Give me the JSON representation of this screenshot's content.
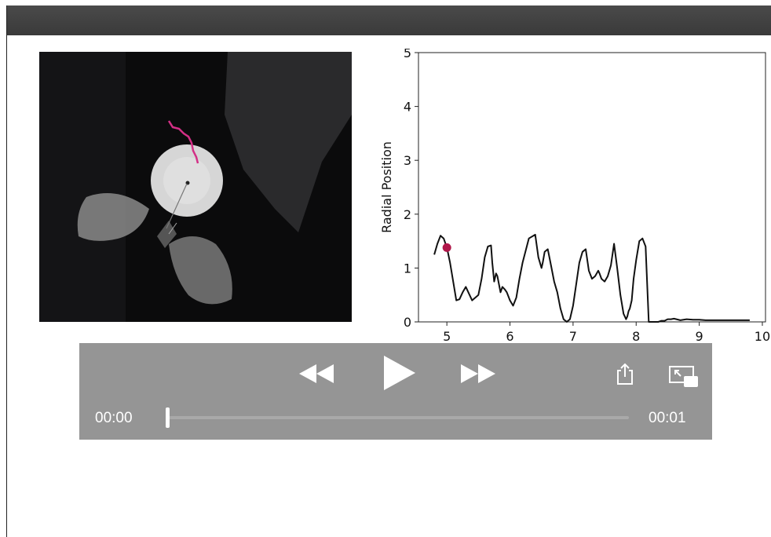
{
  "window": {
    "colors": {
      "close": "#f25f57",
      "minimize": "#e8b42a",
      "zoom": "#3cc23b"
    }
  },
  "video": {
    "description_icon": "video-frame",
    "trail_color": "#d32f86"
  },
  "chart_data": {
    "type": "line",
    "title": "",
    "xlabel": "",
    "ylabel": "Radial Position",
    "xlim": [
      4.55,
      10.05
    ],
    "ylim": [
      0,
      5
    ],
    "xticks": [
      "5",
      "6",
      "7",
      "8",
      "9",
      "10"
    ],
    "yticks": [
      "0",
      "1",
      "2",
      "3",
      "4",
      "5"
    ],
    "grid": false,
    "line_color": "#111111",
    "marker": {
      "x": 5.0,
      "y": 1.38,
      "color": "#b0174a"
    },
    "series": [
      {
        "x": [
          4.8,
          4.85,
          4.9,
          4.95,
          5.0,
          5.05,
          5.1,
          5.15,
          5.2,
          5.25,
          5.3,
          5.4,
          5.5,
          5.55,
          5.6,
          5.65,
          5.7,
          5.72,
          5.75,
          5.78,
          5.8,
          5.85,
          5.88,
          5.92,
          5.95,
          6.0,
          6.05,
          6.1,
          6.15,
          6.2,
          6.3,
          6.4,
          6.45,
          6.5,
          6.52,
          6.55,
          6.6,
          6.65,
          6.7,
          6.75,
          6.8,
          6.85,
          6.9,
          6.95,
          7.0,
          7.05,
          7.1,
          7.15,
          7.2,
          7.25,
          7.3,
          7.35,
          7.4,
          7.42,
          7.45,
          7.5,
          7.55,
          7.6,
          7.65,
          7.7,
          7.75,
          7.8,
          7.82,
          7.84,
          7.86,
          7.88,
          7.9,
          7.93,
          7.96,
          8.0,
          8.05,
          8.1,
          8.15,
          8.2,
          8.25,
          8.3,
          8.35,
          8.4,
          8.45,
          8.5,
          8.55,
          8.6,
          8.7,
          8.8,
          8.9,
          9.0,
          9.1,
          9.2,
          9.3,
          9.4,
          9.5,
          9.6,
          9.7,
          9.8
        ],
        "y": [
          1.25,
          1.45,
          1.6,
          1.55,
          1.38,
          1.1,
          0.75,
          0.4,
          0.42,
          0.55,
          0.65,
          0.4,
          0.5,
          0.8,
          1.2,
          1.4,
          1.42,
          1.1,
          0.75,
          0.9,
          0.85,
          0.55,
          0.65,
          0.6,
          0.55,
          0.4,
          0.3,
          0.45,
          0.8,
          1.1,
          1.55,
          1.62,
          1.2,
          1.0,
          1.1,
          1.3,
          1.35,
          1.05,
          0.75,
          0.55,
          0.25,
          0.05,
          0.0,
          0.05,
          0.3,
          0.7,
          1.1,
          1.3,
          1.35,
          0.95,
          0.8,
          0.85,
          0.95,
          0.9,
          0.8,
          0.75,
          0.85,
          1.05,
          1.45,
          1.0,
          0.5,
          0.15,
          0.1,
          0.05,
          0.1,
          0.2,
          0.25,
          0.4,
          0.8,
          1.15,
          1.5,
          1.55,
          1.4,
          0.0,
          0.0,
          0.0,
          0.0,
          0.02,
          0.02,
          0.05,
          0.05,
          0.06,
          0.03,
          0.05,
          0.04,
          0.04,
          0.03,
          0.03,
          0.03,
          0.03,
          0.03,
          0.03,
          0.03,
          0.03
        ]
      }
    ]
  },
  "player": {
    "current_time": "00:00",
    "duration": "00:01",
    "progress": 0.0,
    "icons": {
      "rewind": "rewind-icon",
      "play": "play-icon",
      "forward": "fast-forward-icon",
      "share": "share-icon",
      "pip": "picture-in-picture-icon"
    }
  }
}
